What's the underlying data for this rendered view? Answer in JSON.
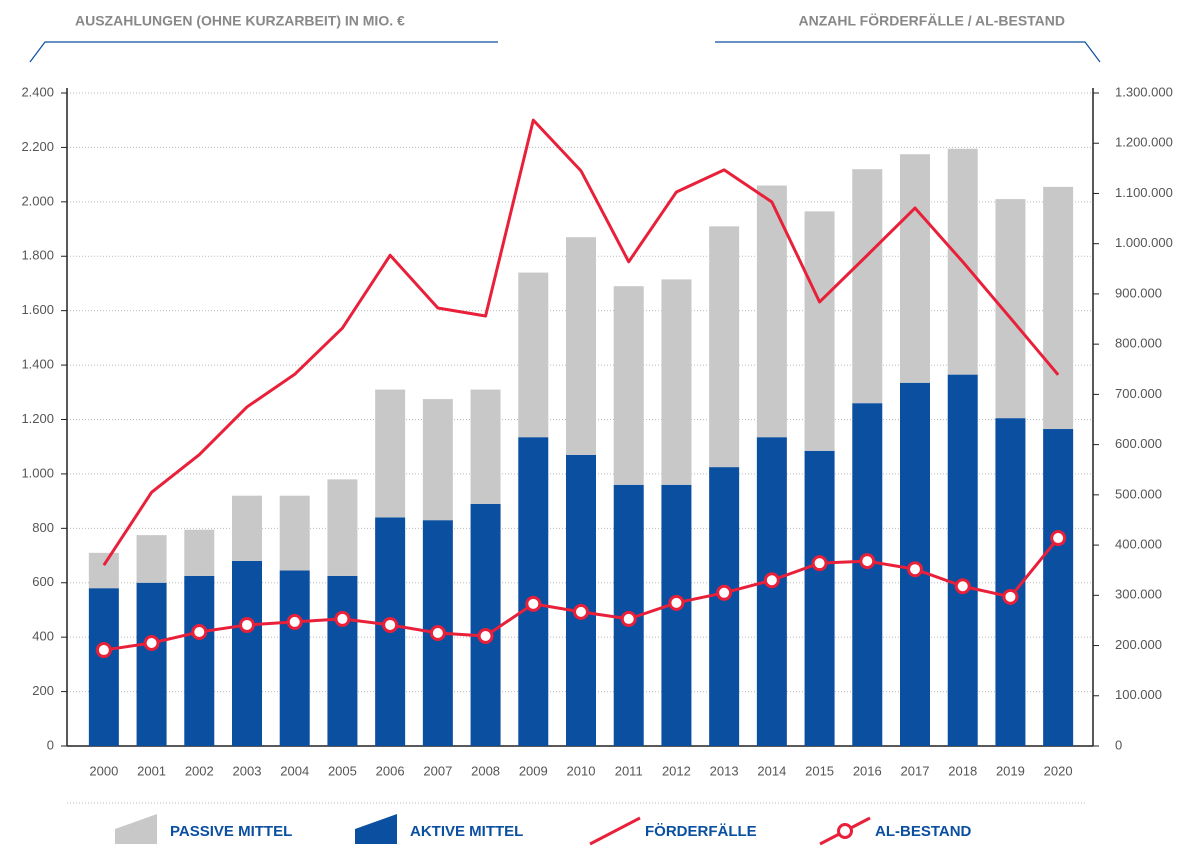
{
  "chart_data": {
    "type": "bar",
    "left_title": "AUSZAHLUNGEN (OHNE KURZARBEIT) IN MIO. €",
    "right_title": "ANZAHL FÖRDERFÄLLE / AL-BESTAND",
    "categories": [
      "2000",
      "2001",
      "2002",
      "2003",
      "2004",
      "2005",
      "2006",
      "2007",
      "2008",
      "2009",
      "2010",
      "2011",
      "2012",
      "2013",
      "2014",
      "2015",
      "2016",
      "2017",
      "2018",
      "2019",
      "2020"
    ],
    "series": [
      {
        "name": "PASSIVE MITTEL",
        "type": "bar",
        "stack": "top",
        "color": "#c8c8c8",
        "values": [
          130,
          175,
          170,
          240,
          275,
          355,
          470,
          445,
          420,
          605,
          800,
          730,
          755,
          885,
          925,
          880,
          860,
          840,
          830,
          805,
          890
        ]
      },
      {
        "name": "AKTIVE MITTEL",
        "type": "bar",
        "stack": "bottom",
        "color": "#0b4fa0",
        "values": [
          580,
          600,
          625,
          680,
          645,
          625,
          840,
          830,
          890,
          1135,
          1070,
          960,
          960,
          1025,
          1135,
          1085,
          1260,
          1335,
          1365,
          1205,
          1165
        ]
      },
      {
        "name": "FÖRDERFÄLLE",
        "type": "line",
        "axis": "y2",
        "color": "#e8203a",
        "values": [
          360000,
          505000,
          580000,
          675000,
          740000,
          832000,
          977000,
          872000,
          856000,
          1246000,
          1145000,
          964000,
          1103000,
          1147000,
          1083000,
          884000,
          977000,
          1071000,
          964000,
          852000,
          739000
        ]
      },
      {
        "name": "AL-BESTAND",
        "type": "line-markers",
        "axis": "y2",
        "color": "#e8203a",
        "values": [
          191000,
          205000,
          227000,
          241000,
          247000,
          253000,
          241000,
          225000,
          219000,
          283000,
          267000,
          253000,
          285000,
          305000,
          330000,
          364000,
          368000,
          352000,
          318000,
          297000,
          414000
        ]
      }
    ],
    "ylim": [
      0,
      2400
    ],
    "yticks": [
      0,
      200,
      400,
      600,
      800,
      {
        "value": 1000,
        "label": "1.000"
      },
      {
        "value": 1200,
        "label": "1.200"
      },
      {
        "value": 1400,
        "label": "1.400"
      },
      {
        "value": 1600,
        "label": "1.600"
      },
      {
        "value": 1800,
        "label": "1.800"
      },
      {
        "value": 2000,
        "label": "2.000"
      },
      {
        "value": 2200,
        "label": "2.200"
      },
      {
        "value": 2400,
        "label": "2.400"
      }
    ],
    "y2lim": [
      0,
      1300000
    ],
    "y2ticks": [
      0,
      {
        "value": 100000,
        "label": "100.000"
      },
      {
        "value": 200000,
        "label": "200.000"
      },
      {
        "value": 300000,
        "label": "300.000"
      },
      {
        "value": 400000,
        "label": "400.000"
      },
      {
        "value": 500000,
        "label": "500.000"
      },
      {
        "value": 600000,
        "label": "600.000"
      },
      {
        "value": 700000,
        "label": "700.000"
      },
      {
        "value": 800000,
        "label": "800.000"
      },
      {
        "value": 900000,
        "label": "900.000"
      },
      {
        "value": 1000000,
        "label": "1.000.000"
      },
      {
        "value": 1100000,
        "label": "1.100.000"
      },
      {
        "value": 1200000,
        "label": "1.200.000"
      },
      {
        "value": 1300000,
        "label": "1.300.000"
      }
    ],
    "grid": true,
    "legend": "bottom"
  }
}
